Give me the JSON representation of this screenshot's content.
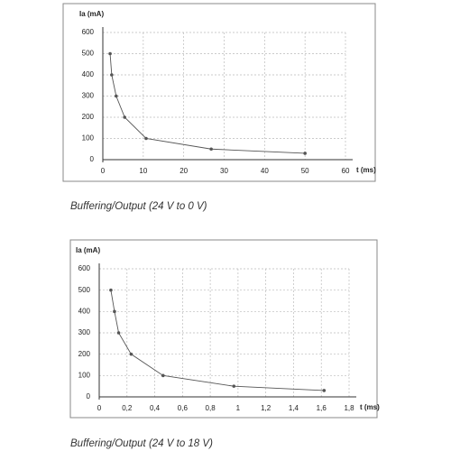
{
  "chart_data": [
    {
      "type": "line",
      "caption": "Buffering/Output (24 V to 0 V)",
      "y_label": "Ia (mA)",
      "x_label": "t (ms)",
      "x": [
        1.8,
        2.2,
        3.3,
        5.4,
        10.7,
        26.8,
        50
      ],
      "values": [
        500,
        400,
        300,
        200,
        100,
        50,
        30
      ],
      "color": "#555555",
      "xlim": [
        0,
        60
      ],
      "xticks": [
        0,
        10,
        20,
        30,
        40,
        50,
        60
      ],
      "ylim": [
        0,
        600
      ],
      "yticks": [
        0,
        100,
        200,
        300,
        400,
        500,
        600
      ],
      "grid": true
    },
    {
      "type": "line",
      "caption": "Buffering/Output (24 V to 18 V)",
      "y_label": "Ia (mA)",
      "x_label": "t (ms)",
      "x": [
        0.084,
        0.11,
        0.14,
        0.23,
        0.46,
        0.97,
        1.62
      ],
      "values": [
        500,
        400,
        300,
        200,
        100,
        50,
        30
      ],
      "color": "#555555",
      "xlim": [
        0,
        1.8
      ],
      "xticks": [
        0,
        {
          "value": 0.2,
          "label": "0,2"
        },
        {
          "value": 0.4,
          "label": "0,4"
        },
        {
          "value": 0.6,
          "label": "0,6"
        },
        {
          "value": 0.8,
          "label": "0,8"
        },
        1,
        {
          "value": 1.2,
          "label": "1,2"
        },
        {
          "value": 1.4,
          "label": "1,4"
        },
        {
          "value": 1.6,
          "label": "1,6"
        },
        {
          "value": 1.8,
          "label": "1,8"
        }
      ],
      "ylim": [
        0,
        600
      ],
      "yticks": [
        0,
        100,
        200,
        300,
        400,
        500,
        600
      ],
      "grid": true
    }
  ]
}
